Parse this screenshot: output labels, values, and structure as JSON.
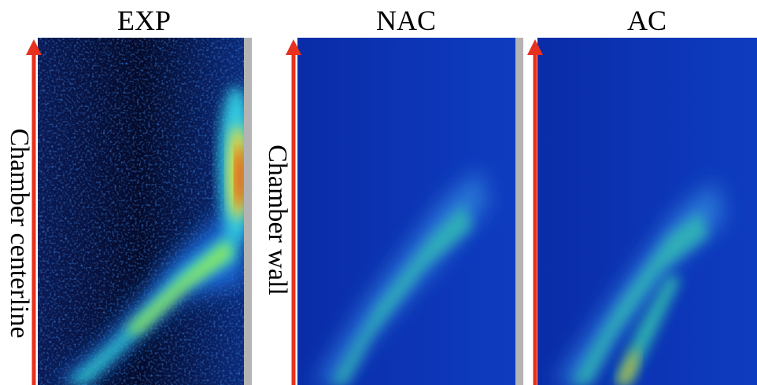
{
  "panels": [
    {
      "title": "EXP"
    },
    {
      "title": "NAC"
    },
    {
      "title": "AC"
    }
  ],
  "labels": {
    "centerline": "Chamber centerline",
    "wall": "Chamber wall"
  }
}
